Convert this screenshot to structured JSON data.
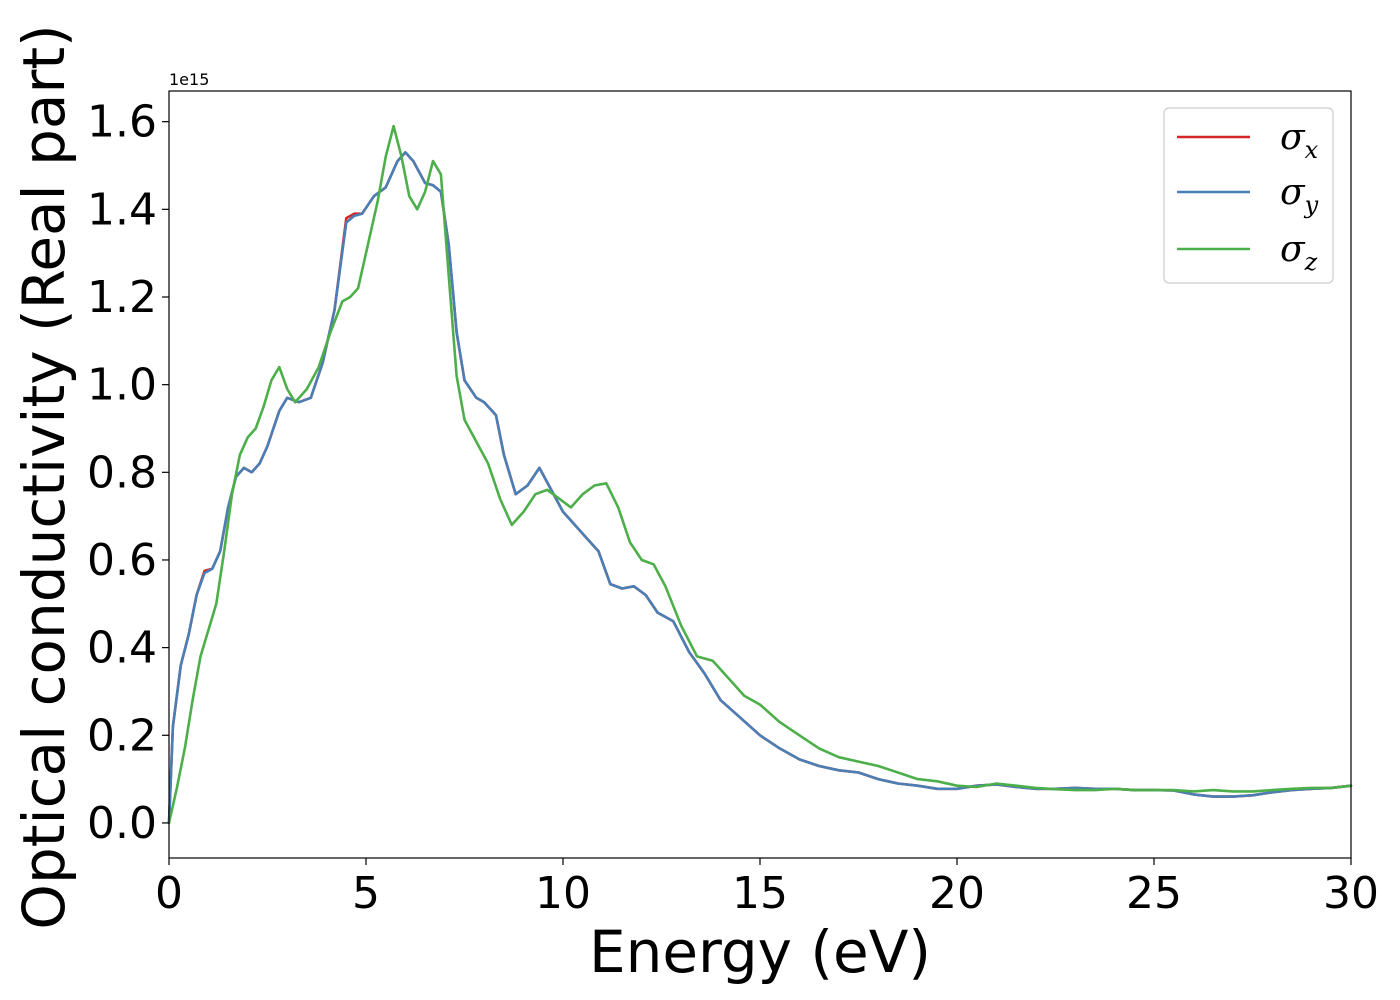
{
  "chart_data": {
    "type": "line",
    "title": "",
    "xlabel": "Energy (eV)",
    "ylabel": "Optical conductivity (Real part)",
    "y_offset_label": "1e15",
    "xlim": [
      0,
      30
    ],
    "ylim": [
      -0.08,
      1.67
    ],
    "xticks": [
      0,
      5,
      10,
      15,
      20,
      25,
      30
    ],
    "xtick_labels": [
      "0",
      "5",
      "10",
      "15",
      "20",
      "25",
      "30"
    ],
    "yticks": [
      0.0,
      0.2,
      0.4,
      0.6,
      0.8,
      1.0,
      1.2,
      1.4,
      1.6
    ],
    "ytick_labels": [
      "0.0",
      "0.2",
      "0.4",
      "0.6",
      "0.8",
      "1.0",
      "1.2",
      "1.4",
      "1.6"
    ],
    "grid": false,
    "legend_position": "top-right",
    "series": [
      {
        "name": "σx",
        "legend_main": "σ",
        "legend_sub": "x",
        "color": "#d62728",
        "x": [
          0,
          0.1,
          0.3,
          0.5,
          0.7,
          0.9,
          1.1,
          1.3,
          1.5,
          1.7,
          1.9,
          2.1,
          2.3,
          2.5,
          2.8,
          3.0,
          3.3,
          3.6,
          3.9,
          4.2,
          4.5,
          4.7,
          4.9,
          5.2,
          5.5,
          5.8,
          6.0,
          6.2,
          6.5,
          6.7,
          6.9,
          7.1,
          7.3,
          7.5,
          7.8,
          8.0,
          8.3,
          8.5,
          8.8,
          9.1,
          9.4,
          9.7,
          10.0,
          10.3,
          10.6,
          10.9,
          11.2,
          11.5,
          11.8,
          12.1,
          12.4,
          12.8,
          13.2,
          13.6,
          14.0,
          14.5,
          15.0,
          15.5,
          16.0,
          16.5,
          17.0,
          17.5,
          18.0,
          18.5,
          19.0,
          19.5,
          20.0,
          20.5,
          21.0,
          21.5,
          22.0,
          22.5,
          23.0,
          23.5,
          24.0,
          24.5,
          25.0,
          25.5,
          26.0,
          26.5,
          27.0,
          27.5,
          28.0,
          28.5,
          29.0,
          29.5,
          30.0
        ],
        "y": [
          0.0,
          0.22,
          0.36,
          0.43,
          0.52,
          0.575,
          0.58,
          0.62,
          0.72,
          0.79,
          0.81,
          0.8,
          0.82,
          0.86,
          0.94,
          0.97,
          0.96,
          0.97,
          1.05,
          1.17,
          1.38,
          1.39,
          1.39,
          1.43,
          1.45,
          1.51,
          1.53,
          1.51,
          1.46,
          1.455,
          1.44,
          1.32,
          1.12,
          1.01,
          0.97,
          0.96,
          0.93,
          0.84,
          0.75,
          0.77,
          0.81,
          0.76,
          0.71,
          0.68,
          0.65,
          0.62,
          0.545,
          0.535,
          0.54,
          0.52,
          0.48,
          0.46,
          0.39,
          0.34,
          0.28,
          0.24,
          0.2,
          0.17,
          0.145,
          0.13,
          0.12,
          0.115,
          0.1,
          0.09,
          0.085,
          0.078,
          0.078,
          0.085,
          0.088,
          0.082,
          0.078,
          0.078,
          0.08,
          0.078,
          0.078,
          0.075,
          0.075,
          0.074,
          0.065,
          0.06,
          0.06,
          0.063,
          0.07,
          0.075,
          0.078,
          0.08,
          0.085
        ]
      },
      {
        "name": "σy",
        "legend_main": "σ",
        "legend_sub": "y",
        "color": "#4a7fb5",
        "x": [
          0,
          0.1,
          0.3,
          0.5,
          0.7,
          0.9,
          1.1,
          1.3,
          1.5,
          1.7,
          1.9,
          2.1,
          2.3,
          2.5,
          2.8,
          3.0,
          3.3,
          3.6,
          3.9,
          4.2,
          4.5,
          4.7,
          4.9,
          5.2,
          5.5,
          5.8,
          6.0,
          6.2,
          6.5,
          6.7,
          6.9,
          7.1,
          7.3,
          7.5,
          7.8,
          8.0,
          8.3,
          8.5,
          8.8,
          9.1,
          9.4,
          9.7,
          10.0,
          10.3,
          10.6,
          10.9,
          11.2,
          11.5,
          11.8,
          12.1,
          12.4,
          12.8,
          13.2,
          13.6,
          14.0,
          14.5,
          15.0,
          15.5,
          16.0,
          16.5,
          17.0,
          17.5,
          18.0,
          18.5,
          19.0,
          19.5,
          20.0,
          20.5,
          21.0,
          21.5,
          22.0,
          22.5,
          23.0,
          23.5,
          24.0,
          24.5,
          25.0,
          25.5,
          26.0,
          26.5,
          27.0,
          27.5,
          28.0,
          28.5,
          29.0,
          29.5,
          30.0
        ],
        "y": [
          0.0,
          0.22,
          0.36,
          0.43,
          0.52,
          0.57,
          0.58,
          0.62,
          0.72,
          0.79,
          0.81,
          0.8,
          0.82,
          0.86,
          0.94,
          0.97,
          0.96,
          0.97,
          1.05,
          1.17,
          1.37,
          1.385,
          1.39,
          1.43,
          1.45,
          1.51,
          1.53,
          1.51,
          1.46,
          1.455,
          1.44,
          1.32,
          1.12,
          1.01,
          0.97,
          0.96,
          0.93,
          0.84,
          0.75,
          0.77,
          0.81,
          0.76,
          0.71,
          0.68,
          0.65,
          0.62,
          0.545,
          0.535,
          0.54,
          0.52,
          0.48,
          0.46,
          0.39,
          0.34,
          0.28,
          0.24,
          0.2,
          0.17,
          0.145,
          0.13,
          0.12,
          0.115,
          0.1,
          0.09,
          0.085,
          0.078,
          0.078,
          0.085,
          0.088,
          0.082,
          0.078,
          0.078,
          0.08,
          0.078,
          0.078,
          0.075,
          0.075,
          0.074,
          0.065,
          0.06,
          0.06,
          0.063,
          0.07,
          0.075,
          0.078,
          0.08,
          0.085
        ]
      },
      {
        "name": "σz",
        "legend_main": "σ",
        "legend_sub": "z",
        "color": "#4daf4a",
        "x": [
          0,
          0.2,
          0.4,
          0.6,
          0.8,
          1.0,
          1.2,
          1.4,
          1.6,
          1.8,
          2.0,
          2.2,
          2.4,
          2.6,
          2.8,
          3.0,
          3.2,
          3.5,
          3.8,
          4.1,
          4.4,
          4.6,
          4.8,
          5.0,
          5.3,
          5.5,
          5.7,
          5.9,
          6.1,
          6.3,
          6.5,
          6.7,
          6.9,
          7.1,
          7.3,
          7.5,
          7.8,
          8.1,
          8.4,
          8.7,
          9.0,
          9.3,
          9.6,
          9.9,
          10.2,
          10.5,
          10.8,
          11.1,
          11.4,
          11.7,
          12.0,
          12.3,
          12.6,
          13.0,
          13.4,
          13.8,
          14.2,
          14.6,
          15.0,
          15.5,
          16.0,
          16.5,
          17.0,
          17.5,
          18.0,
          18.5,
          19.0,
          19.5,
          20.0,
          20.5,
          21.0,
          21.5,
          22.0,
          22.5,
          23.0,
          23.5,
          24.0,
          24.5,
          25.0,
          25.5,
          26.0,
          26.5,
          27.0,
          27.5,
          28.0,
          28.5,
          29.0,
          29.5,
          30.0
        ],
        "y": [
          0.0,
          0.08,
          0.17,
          0.28,
          0.38,
          0.44,
          0.5,
          0.62,
          0.75,
          0.84,
          0.88,
          0.9,
          0.95,
          1.01,
          1.04,
          0.99,
          0.96,
          0.99,
          1.04,
          1.12,
          1.19,
          1.2,
          1.22,
          1.3,
          1.42,
          1.52,
          1.59,
          1.52,
          1.43,
          1.4,
          1.44,
          1.51,
          1.48,
          1.25,
          1.02,
          0.92,
          0.87,
          0.82,
          0.74,
          0.68,
          0.71,
          0.75,
          0.76,
          0.74,
          0.72,
          0.75,
          0.77,
          0.775,
          0.72,
          0.64,
          0.6,
          0.59,
          0.54,
          0.45,
          0.38,
          0.37,
          0.33,
          0.29,
          0.27,
          0.23,
          0.2,
          0.17,
          0.15,
          0.14,
          0.13,
          0.115,
          0.1,
          0.095,
          0.085,
          0.082,
          0.09,
          0.085,
          0.08,
          0.077,
          0.075,
          0.075,
          0.078,
          0.075,
          0.075,
          0.075,
          0.072,
          0.075,
          0.072,
          0.072,
          0.075,
          0.078,
          0.08,
          0.08,
          0.085
        ]
      }
    ]
  }
}
